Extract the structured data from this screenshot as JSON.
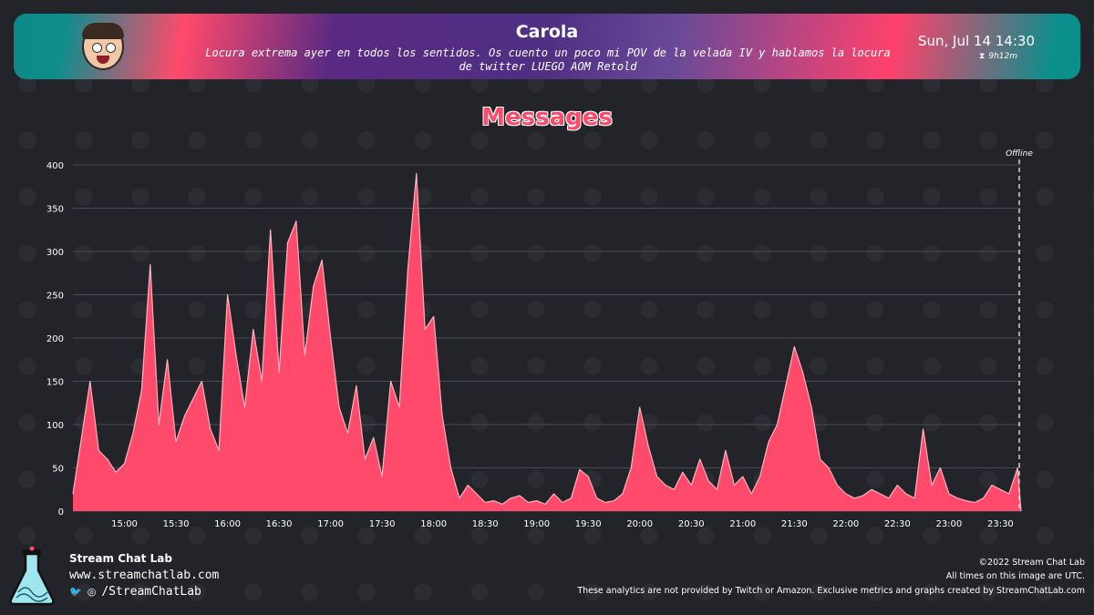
{
  "header": {
    "streamer": "Carola",
    "stream_title": "Locura extrema ayer en todos los sentidos. Os cuento un poco mi POV de la velada IV y hablamos la locura de twitter LUEGO AOM Retold",
    "date": "Sun, Jul 14 14:30",
    "duration": "9h12m"
  },
  "colors": {
    "accent": "#ff4a6b",
    "background": "#222429",
    "line": "#ffb3bf",
    "grid": "#4a4c53"
  },
  "icons": {
    "duration": "hourglass-icon",
    "twitter": "twitter-icon",
    "instagram": "instagram-icon"
  },
  "chart_data": {
    "type": "area",
    "title": "Messages",
    "xlabel": "",
    "ylabel": "",
    "start_time": "14:30",
    "end_time": "23:42",
    "ylim": [
      0,
      400
    ],
    "yticks": [
      "0",
      "50",
      "100",
      "150",
      "200",
      "250",
      "300",
      "350",
      "400"
    ],
    "xticks": [
      "15:00",
      "15:30",
      "16:00",
      "16:30",
      "17:00",
      "17:30",
      "18:00",
      "18:30",
      "19:00",
      "19:30",
      "20:00",
      "20:30",
      "21:00",
      "21:30",
      "22:00",
      "22:30",
      "23:00",
      "23:30"
    ],
    "grid": true,
    "marker_label": "Offline",
    "series": [
      {
        "name": "Messages",
        "x": [
          "14:30",
          "14:35",
          "14:40",
          "14:45",
          "14:50",
          "14:55",
          "15:00",
          "15:05",
          "15:10",
          "15:15",
          "15:20",
          "15:25",
          "15:30",
          "15:35",
          "15:40",
          "15:45",
          "15:50",
          "15:55",
          "16:00",
          "16:05",
          "16:10",
          "16:15",
          "16:20",
          "16:25",
          "16:30",
          "16:35",
          "16:40",
          "16:45",
          "16:50",
          "16:55",
          "17:00",
          "17:05",
          "17:10",
          "17:15",
          "17:20",
          "17:25",
          "17:30",
          "17:35",
          "17:40",
          "17:45",
          "17:50",
          "17:55",
          "18:00",
          "18:05",
          "18:10",
          "18:15",
          "18:20",
          "18:25",
          "18:30",
          "18:35",
          "18:40",
          "18:45",
          "18:50",
          "18:55",
          "19:00",
          "19:05",
          "19:10",
          "19:15",
          "19:20",
          "19:25",
          "19:30",
          "19:35",
          "19:40",
          "19:45",
          "19:50",
          "19:55",
          "20:00",
          "20:05",
          "20:10",
          "20:15",
          "20:20",
          "20:25",
          "20:30",
          "20:35",
          "20:40",
          "20:45",
          "20:50",
          "20:55",
          "21:00",
          "21:05",
          "21:10",
          "21:15",
          "21:20",
          "21:25",
          "21:30",
          "21:35",
          "21:40",
          "21:45",
          "21:50",
          "21:55",
          "22:00",
          "22:05",
          "22:10",
          "22:15",
          "22:20",
          "22:25",
          "22:30",
          "22:35",
          "22:40",
          "22:45",
          "22:50",
          "22:55",
          "23:00",
          "23:05",
          "23:10",
          "23:15",
          "23:20",
          "23:25",
          "23:30",
          "23:35",
          "23:40",
          "23:42"
        ],
        "values": [
          20,
          85,
          150,
          70,
          60,
          45,
          55,
          90,
          140,
          285,
          100,
          175,
          80,
          110,
          130,
          150,
          95,
          70,
          250,
          180,
          120,
          210,
          150,
          325,
          160,
          310,
          335,
          180,
          260,
          290,
          200,
          120,
          90,
          145,
          60,
          85,
          40,
          150,
          120,
          280,
          390,
          210,
          225,
          110,
          50,
          15,
          30,
          20,
          10,
          12,
          8,
          15,
          18,
          10,
          12,
          8,
          20,
          10,
          15,
          48,
          40,
          15,
          10,
          12,
          20,
          50,
          120,
          75,
          40,
          30,
          25,
          45,
          30,
          60,
          35,
          25,
          70,
          30,
          40,
          20,
          40,
          80,
          100,
          145,
          190,
          160,
          120,
          60,
          50,
          30,
          20,
          15,
          18,
          25,
          20,
          15,
          30,
          20,
          15,
          95,
          30,
          50,
          20,
          15,
          12,
          10,
          15,
          30,
          25,
          20,
          50,
          0
        ]
      }
    ]
  },
  "footer": {
    "brand": "Stream Chat Lab",
    "url": "www.streamchatlab.com",
    "social": "/StreamChatLab",
    "copyright": "©2022 Stream Chat Lab",
    "utc_note": "All times on this image are UTC.",
    "disclaimer": "These analytics are not provided by Twitch or Amazon. Exclusive metrics and graphs created by StreamChatLab.com"
  }
}
